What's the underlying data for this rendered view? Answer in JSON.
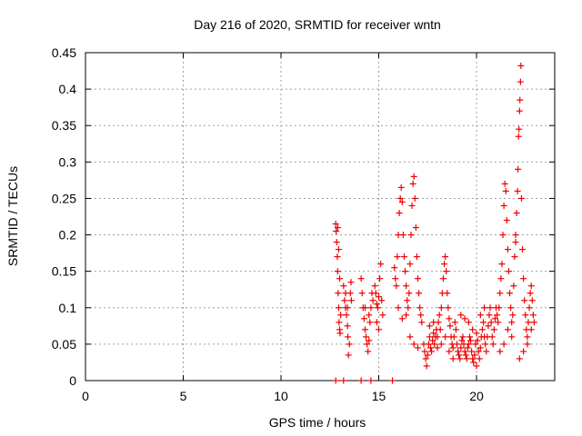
{
  "chart_data": {
    "type": "scatter",
    "title": "Day 216 of 2020, SRMTID for receiver wntn",
    "xlabel": "GPS time / hours",
    "ylabel": "SRMTID / TECUs",
    "xlim": [
      0,
      24
    ],
    "ylim": [
      0,
      0.45
    ],
    "xticks": [
      0,
      5,
      10,
      15,
      20
    ],
    "xtick_labels": [
      "0",
      "5",
      "10",
      "15",
      "20"
    ],
    "yticks": [
      0,
      0.05,
      0.1,
      0.15,
      0.2,
      0.25,
      0.3,
      0.35,
      0.4,
      0.45
    ],
    "ytick_labels": [
      "0",
      "0.05",
      "0.1",
      "0.15",
      "0.2",
      "0.25",
      "0.3",
      "0.35",
      "0.4",
      "0.45"
    ],
    "grid": true,
    "marker": "+",
    "color": "#ee0000",
    "series": [
      {
        "name": "SRMTID",
        "points": [
          [
            12.8,
            0.215
          ],
          [
            12.82,
            0.205
          ],
          [
            12.85,
            0.19
          ],
          [
            12.88,
            0.17
          ],
          [
            12.9,
            0.15
          ],
          [
            12.92,
            0.12
          ],
          [
            12.95,
            0.1
          ],
          [
            12.97,
            0.08
          ],
          [
            13.0,
            0.07
          ],
          [
            13.02,
            0.065
          ],
          [
            13.05,
            0.09
          ],
          [
            12.9,
            0.21
          ],
          [
            12.95,
            0.18
          ],
          [
            13.0,
            0.14
          ],
          [
            13.2,
            0.13
          ],
          [
            13.25,
            0.11
          ],
          [
            13.3,
            0.1
          ],
          [
            13.35,
            0.09
          ],
          [
            13.4,
            0.075
          ],
          [
            13.42,
            0.06
          ],
          [
            13.45,
            0.035
          ],
          [
            13.5,
            0.05
          ],
          [
            13.55,
            0.12
          ],
          [
            13.58,
            0.135
          ],
          [
            13.6,
            0.11
          ],
          [
            13.3,
            0.12
          ],
          [
            13.4,
            0.1
          ],
          [
            14.1,
            0.14
          ],
          [
            14.15,
            0.12
          ],
          [
            14.2,
            0.1
          ],
          [
            14.25,
            0.085
          ],
          [
            14.3,
            0.07
          ],
          [
            14.35,
            0.06
          ],
          [
            14.4,
            0.05
          ],
          [
            14.45,
            0.04
          ],
          [
            14.5,
            0.055
          ],
          [
            14.55,
            0.08
          ],
          [
            14.6,
            0.1
          ],
          [
            14.65,
            0.12
          ],
          [
            14.7,
            0.11
          ],
          [
            14.3,
            0.1
          ],
          [
            14.5,
            0.09
          ],
          [
            14.8,
            0.13
          ],
          [
            14.85,
            0.12
          ],
          [
            14.9,
            0.105
          ],
          [
            14.95,
            0.1
          ],
          [
            15.0,
            0.115
          ],
          [
            15.05,
            0.14
          ],
          [
            15.1,
            0.16
          ],
          [
            15.15,
            0.11
          ],
          [
            15.2,
            0.09
          ],
          [
            14.9,
            0.08
          ],
          [
            15.0,
            0.07
          ],
          [
            15.8,
            0.155
          ],
          [
            15.85,
            0.14
          ],
          [
            15.9,
            0.13
          ],
          [
            15.95,
            0.17
          ],
          [
            16.0,
            0.2
          ],
          [
            16.05,
            0.23
          ],
          [
            16.1,
            0.25
          ],
          [
            16.15,
            0.265
          ],
          [
            16.2,
            0.245
          ],
          [
            16.25,
            0.2
          ],
          [
            16.3,
            0.17
          ],
          [
            16.35,
            0.15
          ],
          [
            16.4,
            0.13
          ],
          [
            16.45,
            0.11
          ],
          [
            16.5,
            0.1
          ],
          [
            16.55,
            0.12
          ],
          [
            16.6,
            0.16
          ],
          [
            16.65,
            0.2
          ],
          [
            16.7,
            0.24
          ],
          [
            16.75,
            0.27
          ],
          [
            16.8,
            0.28
          ],
          [
            16.85,
            0.25
          ],
          [
            16.9,
            0.21
          ],
          [
            16.95,
            0.17
          ],
          [
            17.0,
            0.14
          ],
          [
            17.05,
            0.12
          ],
          [
            17.1,
            0.1
          ],
          [
            16.0,
            0.1
          ],
          [
            16.2,
            0.085
          ],
          [
            16.4,
            0.09
          ],
          [
            16.6,
            0.06
          ],
          [
            16.8,
            0.05
          ],
          [
            17.0,
            0.045
          ],
          [
            17.15,
            0.09
          ],
          [
            17.2,
            0.08
          ],
          [
            17.3,
            0.05
          ],
          [
            17.35,
            0.04
          ],
          [
            17.4,
            0.03
          ],
          [
            17.45,
            0.02
          ],
          [
            17.5,
            0.035
          ],
          [
            17.55,
            0.05
          ],
          [
            17.6,
            0.06
          ],
          [
            17.65,
            0.045
          ],
          [
            17.7,
            0.04
          ],
          [
            17.75,
            0.055
          ],
          [
            17.8,
            0.065
          ],
          [
            17.85,
            0.05
          ],
          [
            17.9,
            0.06
          ],
          [
            17.95,
            0.07
          ],
          [
            18.0,
            0.06
          ],
          [
            18.05,
            0.08
          ],
          [
            18.1,
            0.09
          ],
          [
            18.15,
            0.07
          ],
          [
            18.2,
            0.1
          ],
          [
            18.25,
            0.12
          ],
          [
            18.3,
            0.14
          ],
          [
            18.35,
            0.16
          ],
          [
            18.4,
            0.17
          ],
          [
            18.45,
            0.15
          ],
          [
            18.5,
            0.12
          ],
          [
            18.55,
            0.1
          ],
          [
            18.6,
            0.085
          ],
          [
            18.65,
            0.075
          ],
          [
            18.7,
            0.06
          ],
          [
            18.75,
            0.05
          ],
          [
            18.8,
            0.045
          ],
          [
            18.85,
            0.06
          ],
          [
            18.9,
            0.08
          ],
          [
            18.95,
            0.07
          ],
          [
            17.6,
            0.075
          ],
          [
            17.8,
            0.08
          ],
          [
            18.0,
            0.045
          ],
          [
            18.2,
            0.05
          ],
          [
            18.4,
            0.06
          ],
          [
            18.6,
            0.04
          ],
          [
            18.8,
            0.03
          ],
          [
            19.0,
            0.05
          ],
          [
            19.05,
            0.04
          ],
          [
            19.1,
            0.035
          ],
          [
            19.15,
            0.03
          ],
          [
            19.2,
            0.045
          ],
          [
            19.25,
            0.055
          ],
          [
            19.3,
            0.06
          ],
          [
            19.35,
            0.05
          ],
          [
            19.4,
            0.04
          ],
          [
            19.45,
            0.035
          ],
          [
            19.5,
            0.03
          ],
          [
            19.55,
            0.045
          ],
          [
            19.6,
            0.05
          ],
          [
            19.65,
            0.06
          ],
          [
            19.7,
            0.055
          ],
          [
            19.75,
            0.04
          ],
          [
            19.8,
            0.03
          ],
          [
            19.85,
            0.025
          ],
          [
            19.9,
            0.035
          ],
          [
            19.95,
            0.05
          ],
          [
            20.0,
            0.065
          ],
          [
            20.05,
            0.055
          ],
          [
            20.1,
            0.04
          ],
          [
            20.15,
            0.03
          ],
          [
            20.2,
            0.045
          ],
          [
            20.25,
            0.06
          ],
          [
            20.3,
            0.07
          ],
          [
            20.35,
            0.08
          ],
          [
            20.4,
            0.06
          ],
          [
            20.45,
            0.05
          ],
          [
            20.5,
            0.04
          ],
          [
            20.55,
            0.06
          ],
          [
            20.6,
            0.075
          ],
          [
            20.65,
            0.09
          ],
          [
            20.7,
            0.1
          ],
          [
            20.75,
            0.08
          ],
          [
            20.8,
            0.06
          ],
          [
            20.85,
            0.05
          ],
          [
            19.2,
            0.09
          ],
          [
            19.4,
            0.085
          ],
          [
            19.6,
            0.08
          ],
          [
            19.8,
            0.07
          ],
          [
            20.0,
            0.02
          ],
          [
            20.2,
            0.09
          ],
          [
            20.4,
            0.1
          ],
          [
            20.9,
            0.07
          ],
          [
            20.95,
            0.085
          ],
          [
            21.0,
            0.1
          ],
          [
            21.05,
            0.09
          ],
          [
            21.1,
            0.08
          ],
          [
            21.15,
            0.1
          ],
          [
            21.2,
            0.12
          ],
          [
            21.25,
            0.14
          ],
          [
            21.3,
            0.16
          ],
          [
            21.35,
            0.2
          ],
          [
            21.4,
            0.24
          ],
          [
            21.45,
            0.27
          ],
          [
            21.5,
            0.26
          ],
          [
            21.55,
            0.22
          ],
          [
            21.6,
            0.18
          ],
          [
            21.65,
            0.15
          ],
          [
            21.7,
            0.12
          ],
          [
            21.75,
            0.1
          ],
          [
            21.8,
            0.08
          ],
          [
            21.85,
            0.09
          ],
          [
            21.9,
            0.13
          ],
          [
            21.95,
            0.17
          ],
          [
            22.0,
            0.19
          ],
          [
            21.2,
            0.04
          ],
          [
            21.4,
            0.05
          ],
          [
            21.6,
            0.07
          ],
          [
            21.8,
            0.06
          ],
          [
            22.0,
            0.2
          ],
          [
            22.05,
            0.23
          ],
          [
            22.1,
            0.26
          ],
          [
            22.12,
            0.29
          ],
          [
            22.15,
            0.335
          ],
          [
            22.17,
            0.345
          ],
          [
            22.2,
            0.37
          ],
          [
            22.22,
            0.385
          ],
          [
            22.25,
            0.41
          ],
          [
            22.27,
            0.432
          ],
          [
            22.3,
            0.25
          ],
          [
            22.35,
            0.18
          ],
          [
            22.4,
            0.14
          ],
          [
            22.45,
            0.11
          ],
          [
            22.5,
            0.09
          ],
          [
            22.55,
            0.07
          ],
          [
            22.6,
            0.06
          ],
          [
            22.65,
            0.08
          ],
          [
            22.7,
            0.1
          ],
          [
            22.75,
            0.12
          ],
          [
            22.8,
            0.13
          ],
          [
            22.85,
            0.11
          ],
          [
            22.9,
            0.09
          ],
          [
            22.95,
            0.08
          ],
          [
            22.2,
            0.03
          ],
          [
            22.4,
            0.04
          ],
          [
            22.6,
            0.05
          ],
          [
            22.8,
            0.07
          ],
          [
            12.8,
            0.0
          ],
          [
            13.2,
            0.0
          ],
          [
            14.1,
            0.0
          ],
          [
            14.6,
            0.0
          ],
          [
            15.7,
            0.0
          ]
        ]
      }
    ]
  }
}
